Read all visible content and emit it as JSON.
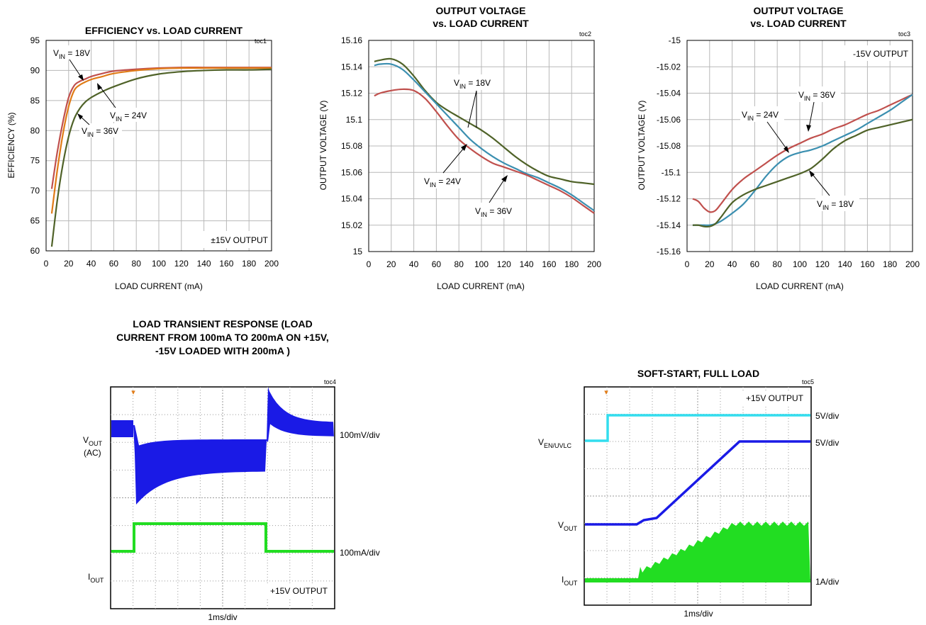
{
  "charts": [
    {
      "toc": "toc1",
      "title_lines": [
        "EFFICIENCY vs. LOAD CURRENT"
      ],
      "xlabel": "LOAD CURRENT (mA)",
      "ylabel": "EFFICIENCY (%)",
      "xticks": [
        "0",
        "20",
        "40",
        "60",
        "80",
        "100",
        "120",
        "140",
        "160",
        "180",
        "200"
      ],
      "yticks": [
        "95",
        "90",
        "85",
        "80",
        "75",
        "70",
        "65",
        "60"
      ],
      "note": "±15V OUTPUT",
      "labels": [
        {
          "main": "V",
          "sub": "IN",
          "rest": " = 18V"
        },
        {
          "main": "V",
          "sub": "IN",
          "rest": " = 24V"
        },
        {
          "main": "V",
          "sub": "IN",
          "rest": " = 36V"
        }
      ]
    },
    {
      "toc": "toc2",
      "title_lines": [
        "OUTPUT VOLTAGE",
        "vs. LOAD CURRENT"
      ],
      "xlabel": "LOAD CURRENT (mA)",
      "ylabel": "OUTPUT  VOLTAGE  (V)",
      "xticks": [
        "0",
        "20",
        "40",
        "60",
        "80",
        "100",
        "120",
        "140",
        "160",
        "180",
        "200"
      ],
      "yticks": [
        "15.16",
        "15.14",
        "15.12",
        "15.1",
        "15.08",
        "15.06",
        "15.04",
        "15.02",
        "15"
      ],
      "note": "",
      "labels": [
        {
          "main": "V",
          "sub": "IN",
          "rest": " = 18V"
        },
        {
          "main": "V",
          "sub": "IN",
          "rest": " = 24V"
        },
        {
          "main": "V",
          "sub": "IN",
          "rest": " = 36V"
        }
      ]
    },
    {
      "toc": "toc3",
      "title_lines": [
        "OUTPUT VOLTAGE",
        "vs. LOAD CURRENT"
      ],
      "xlabel": "LOAD CURRENT (mA)",
      "ylabel": "OUTPUT  VOLTAGE  (V)",
      "xticks": [
        "0",
        "20",
        "40",
        "60",
        "80",
        "100",
        "120",
        "140",
        "160",
        "180",
        "200"
      ],
      "yticks": [
        "-15",
        "-15.02",
        "-15.04",
        "-15.06",
        "-15.08",
        "-15.1",
        "-15.12",
        "-15.14",
        "-15.16"
      ],
      "note": "-15V OUTPUT",
      "labels": [
        {
          "main": "V",
          "sub": "IN",
          "rest": " = 36V"
        },
        {
          "main": "V",
          "sub": "IN",
          "rest": " = 24V"
        },
        {
          "main": "V",
          "sub": "IN",
          "rest": " = 18V"
        }
      ]
    },
    {
      "toc": "toc4",
      "title_lines": [
        "LOAD TRANSIENT RESPONSE (LOAD",
        "CURRENT FROM 100mA TO 200mA ON +15V,",
        "-15V LOADED WITH 200mA )"
      ],
      "xlabel": "1ms/div",
      "note": "+15V OUTPUT",
      "left_labels": [
        {
          "main": "V",
          "sub": "OUT",
          "rest": ""
        },
        {
          "main": "(AC)",
          "sub": "",
          "rest": ""
        },
        {
          "main": "I",
          "sub": "OUT",
          "rest": ""
        }
      ],
      "right_labels": [
        "100mV/div",
        "100mA/div"
      ]
    },
    {
      "toc": "toc5",
      "title_lines": [
        "SOFT-START, FULL LOAD"
      ],
      "xlabel": "1ms/div",
      "note": "+15V OUTPUT",
      "left_labels": [
        {
          "main": "V",
          "sub": "EN/UVLC",
          "rest": ""
        },
        {
          "main": "V",
          "sub": "OUT",
          "rest": ""
        },
        {
          "main": "I",
          "sub": "OUT",
          "rest": ""
        }
      ],
      "right_labels": [
        "5V/div",
        "5V/div",
        "1A/div"
      ]
    }
  ],
  "colors": {
    "vin18": "#c0504d",
    "vin24": "#e07b16",
    "vin36": "#4f6228",
    "blue_teal": "#3b8fb0",
    "scope_blue": "#1a1ae6",
    "scope_green": "#22dd22",
    "scope_cyan": "#33ddee"
  },
  "chart_data": [
    {
      "type": "line",
      "title": "EFFICIENCY vs. LOAD CURRENT",
      "xlabel": "LOAD CURRENT (mA)",
      "ylabel": "EFFICIENCY (%)",
      "xlim": [
        0,
        200
      ],
      "ylim": [
        60,
        95
      ],
      "series": [
        {
          "name": "VIN = 18V",
          "color": "#c0504d",
          "x": [
            5,
            10,
            15,
            20,
            25,
            30,
            35,
            40,
            50,
            60,
            80,
            100,
            120,
            140,
            160,
            180,
            200
          ],
          "y": [
            70.3,
            76.5,
            81.5,
            85.5,
            87.5,
            88.2,
            88.6,
            89.0,
            89.5,
            89.9,
            90.2,
            90.4,
            90.5,
            90.5,
            90.5,
            90.5,
            90.5
          ]
        },
        {
          "name": "VIN = 24V",
          "color": "#e07b16",
          "x": [
            5,
            10,
            15,
            20,
            25,
            30,
            35,
            40,
            50,
            60,
            80,
            100,
            120,
            140,
            160,
            180,
            200
          ],
          "y": [
            66.2,
            73.5,
            79.5,
            84.0,
            86.7,
            87.6,
            88.1,
            88.5,
            89.0,
            89.5,
            90.0,
            90.3,
            90.4,
            90.4,
            90.4,
            90.4,
            90.4
          ]
        },
        {
          "name": "VIN = 36V",
          "color": "#4f6228",
          "x": [
            5,
            10,
            15,
            20,
            25,
            30,
            35,
            40,
            50,
            60,
            80,
            100,
            120,
            140,
            160,
            180,
            200
          ],
          "y": [
            60.7,
            68.5,
            74.5,
            79.0,
            82.0,
            83.7,
            84.8,
            85.5,
            86.5,
            87.3,
            88.6,
            89.4,
            89.8,
            90.0,
            90.1,
            90.1,
            90.2
          ]
        }
      ]
    },
    {
      "type": "line",
      "title": "OUTPUT VOLTAGE vs. LOAD CURRENT",
      "xlabel": "LOAD CURRENT (mA)",
      "ylabel": "OUTPUT VOLTAGE (V)",
      "xlim": [
        0,
        200
      ],
      "ylim": [
        15,
        15.16
      ],
      "series": [
        {
          "name": "VIN = 18V",
          "color": "#4f6228",
          "x": [
            5,
            10,
            20,
            30,
            40,
            50,
            60,
            70,
            80,
            90,
            100,
            110,
            120,
            130,
            140,
            150,
            160,
            170,
            180,
            190,
            200
          ],
          "y": [
            15.144,
            15.145,
            15.146,
            15.142,
            15.133,
            15.122,
            15.113,
            15.107,
            15.102,
            15.097,
            15.092,
            15.086,
            15.079,
            15.072,
            15.066,
            15.061,
            15.057,
            15.055,
            15.053,
            15.052,
            15.051
          ]
        },
        {
          "name": "VIN = 24V",
          "color": "#3b8fb0",
          "x": [
            5,
            10,
            20,
            30,
            40,
            50,
            60,
            70,
            80,
            90,
            100,
            110,
            120,
            130,
            140,
            150,
            160,
            170,
            180,
            190,
            200
          ],
          "y": [
            15.141,
            15.142,
            15.142,
            15.138,
            15.13,
            15.121,
            15.112,
            15.103,
            15.094,
            15.085,
            15.078,
            15.072,
            15.067,
            15.063,
            15.059,
            15.056,
            15.052,
            15.048,
            15.043,
            15.037,
            15.031
          ]
        },
        {
          "name": "VIN = 36V",
          "color": "#c0504d",
          "x": [
            5,
            10,
            20,
            30,
            40,
            50,
            60,
            70,
            80,
            90,
            100,
            110,
            120,
            130,
            140,
            150,
            160,
            170,
            180,
            190,
            200
          ],
          "y": [
            15.118,
            15.12,
            15.122,
            15.123,
            15.122,
            15.116,
            15.106,
            15.095,
            15.085,
            15.078,
            15.072,
            15.067,
            15.064,
            15.061,
            15.058,
            15.054,
            15.05,
            15.046,
            15.041,
            15.035,
            15.029
          ]
        }
      ]
    },
    {
      "type": "line",
      "title": "OUTPUT VOLTAGE vs. LOAD CURRENT",
      "xlabel": "LOAD CURRENT (mA)",
      "ylabel": "OUTPUT VOLTAGE (V)",
      "xlim": [
        0,
        200
      ],
      "ylim": [
        -15.16,
        -15
      ],
      "series": [
        {
          "name": "VIN = 36V",
          "color": "#c0504d",
          "x": [
            5,
            10,
            15,
            20,
            25,
            30,
            40,
            50,
            60,
            70,
            80,
            90,
            100,
            110,
            120,
            130,
            140,
            150,
            160,
            170,
            180,
            190,
            200
          ],
          "y": [
            -15.12,
            -15.122,
            -15.127,
            -15.13,
            -15.129,
            -15.124,
            -15.113,
            -15.105,
            -15.099,
            -15.093,
            -15.087,
            -15.082,
            -15.078,
            -15.074,
            -15.071,
            -15.067,
            -15.064,
            -15.06,
            -15.056,
            -15.053,
            -15.049,
            -15.045,
            -15.041
          ]
        },
        {
          "name": "VIN = 24V",
          "color": "#3b8fb0",
          "x": [
            5,
            10,
            15,
            20,
            25,
            30,
            40,
            50,
            60,
            70,
            80,
            90,
            100,
            110,
            120,
            130,
            140,
            150,
            160,
            170,
            180,
            190,
            200
          ],
          "y": [
            -15.14,
            -15.14,
            -15.14,
            -15.14,
            -15.139,
            -15.137,
            -15.131,
            -15.124,
            -15.114,
            -15.103,
            -15.094,
            -15.088,
            -15.085,
            -15.083,
            -15.08,
            -15.076,
            -15.072,
            -15.068,
            -15.063,
            -15.058,
            -15.053,
            -15.047,
            -15.041
          ]
        },
        {
          "name": "VIN = 18V",
          "color": "#4f6228",
          "x": [
            5,
            10,
            15,
            20,
            25,
            30,
            40,
            50,
            60,
            70,
            80,
            90,
            100,
            110,
            120,
            130,
            140,
            150,
            160,
            170,
            180,
            190,
            200
          ],
          "y": [
            -15.14,
            -15.14,
            -15.141,
            -15.141,
            -15.139,
            -15.134,
            -15.123,
            -15.117,
            -15.113,
            -15.11,
            -15.107,
            -15.104,
            -15.101,
            -15.097,
            -15.09,
            -15.082,
            -15.076,
            -15.072,
            -15.068,
            -15.066,
            -15.064,
            -15.062,
            -15.06
          ]
        }
      ]
    }
  ]
}
